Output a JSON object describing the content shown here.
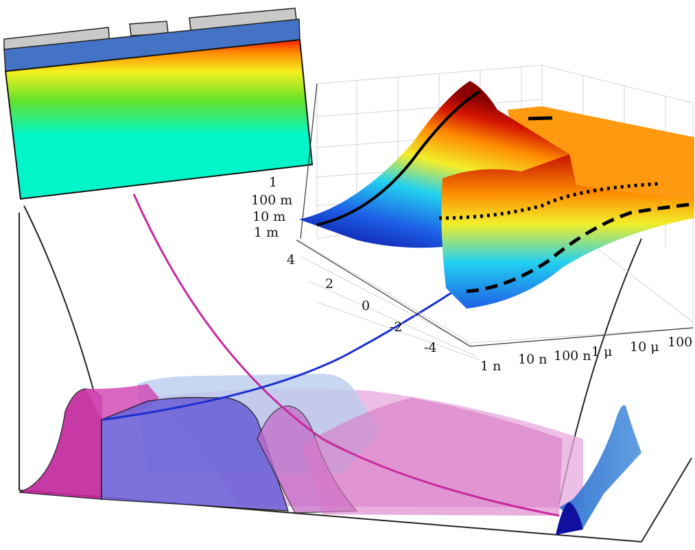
{
  "inset": {
    "contacts": 3,
    "colors": {
      "contact": "#c9c9c9",
      "oxide": "#4472c4",
      "substrate_base": "#00f5c8",
      "gradient_top": "#ff1a00"
    }
  },
  "surface_plot": {
    "z_axis_ticks": [
      "1",
      "100 m",
      "10 m",
      "1 m"
    ],
    "y_axis_ticks": [
      "4",
      "2",
      "0",
      "-2",
      "-4"
    ],
    "x_axis_ticks": [
      "1 n",
      "10 n",
      "100 n",
      "1 μ",
      "10 μ",
      "100"
    ],
    "colormap": [
      "#0a0a9a",
      "#1e5fe6",
      "#22d1f0",
      "#f2ee2a",
      "#ff8a00",
      "#d41600",
      "#8a0000"
    ],
    "curve_styles": [
      "solid",
      "dotted",
      "dashed"
    ]
  },
  "band_diagram": {
    "colors": {
      "magenta": "#c2259c",
      "light_magenta": "#e7a9dd",
      "violet": "#6f63d8",
      "light_blue": "#b9cdee",
      "right_blue": "#2f72d0",
      "outline": "#111111"
    }
  }
}
